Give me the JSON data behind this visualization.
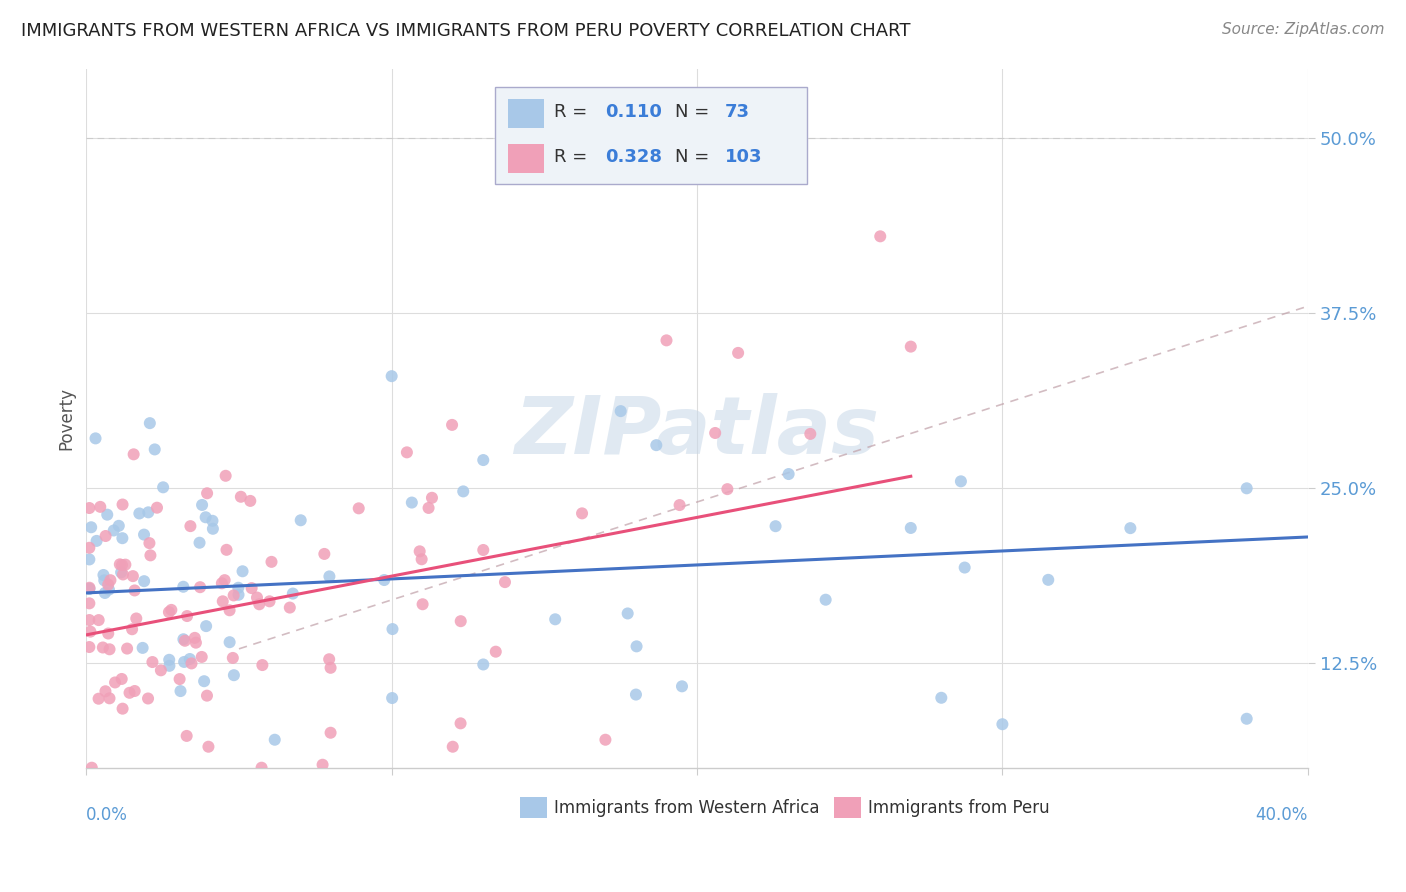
{
  "title": "IMMIGRANTS FROM WESTERN AFRICA VS IMMIGRANTS FROM PERU POVERTY CORRELATION CHART",
  "source": "Source: ZipAtlas.com",
  "ylabel": "Poverty",
  "yticks": [
    0.125,
    0.25,
    0.375,
    0.5
  ],
  "ytick_labels": [
    "12.5%",
    "25.0%",
    "37.5%",
    "50.0%"
  ],
  "xlim": [
    0.0,
    0.4
  ],
  "ylim": [
    0.05,
    0.55
  ],
  "watermark": "ZIPatlas",
  "series1_color": "#a8c8e8",
  "series2_color": "#f0a0b8",
  "line1_color": "#4472c4",
  "line2_color": "#e8507a",
  "dashed_color": "#d0a0a8",
  "series1_label": "Immigrants from Western Africa",
  "series2_label": "Immigrants from Peru",
  "legend_box_color": "#e8f0f8",
  "legend_border_color": "#aaaacc"
}
